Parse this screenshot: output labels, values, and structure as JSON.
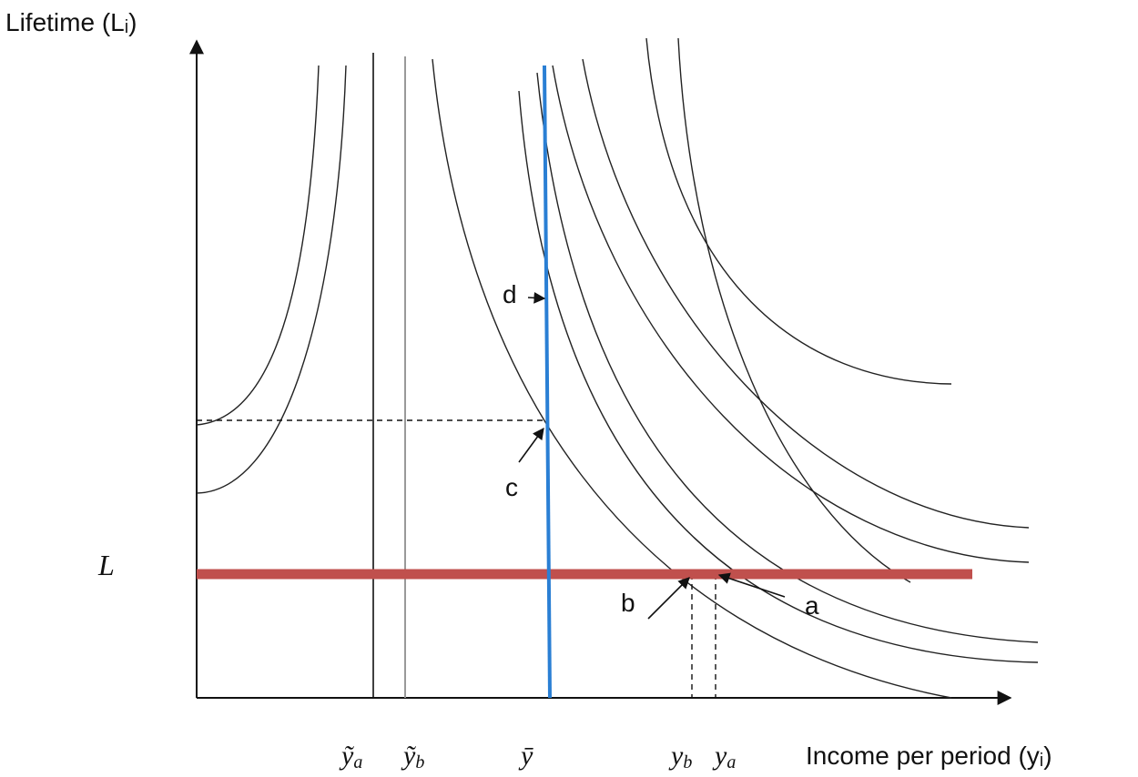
{
  "axes": {
    "y_label": "Lifetime (Lᵢ)",
    "x_label": "Income per period (yᵢ)"
  },
  "level_label": "L",
  "x_markers": [
    {
      "base": "ỹ",
      "sub": "a"
    },
    {
      "base": "ỹ",
      "sub": "b"
    },
    {
      "base": "ȳ",
      "sub": ""
    },
    {
      "base": "y",
      "sub": "b"
    },
    {
      "base": "y",
      "sub": "a"
    }
  ],
  "points": [
    "a",
    "b",
    "c",
    "d"
  ]
}
